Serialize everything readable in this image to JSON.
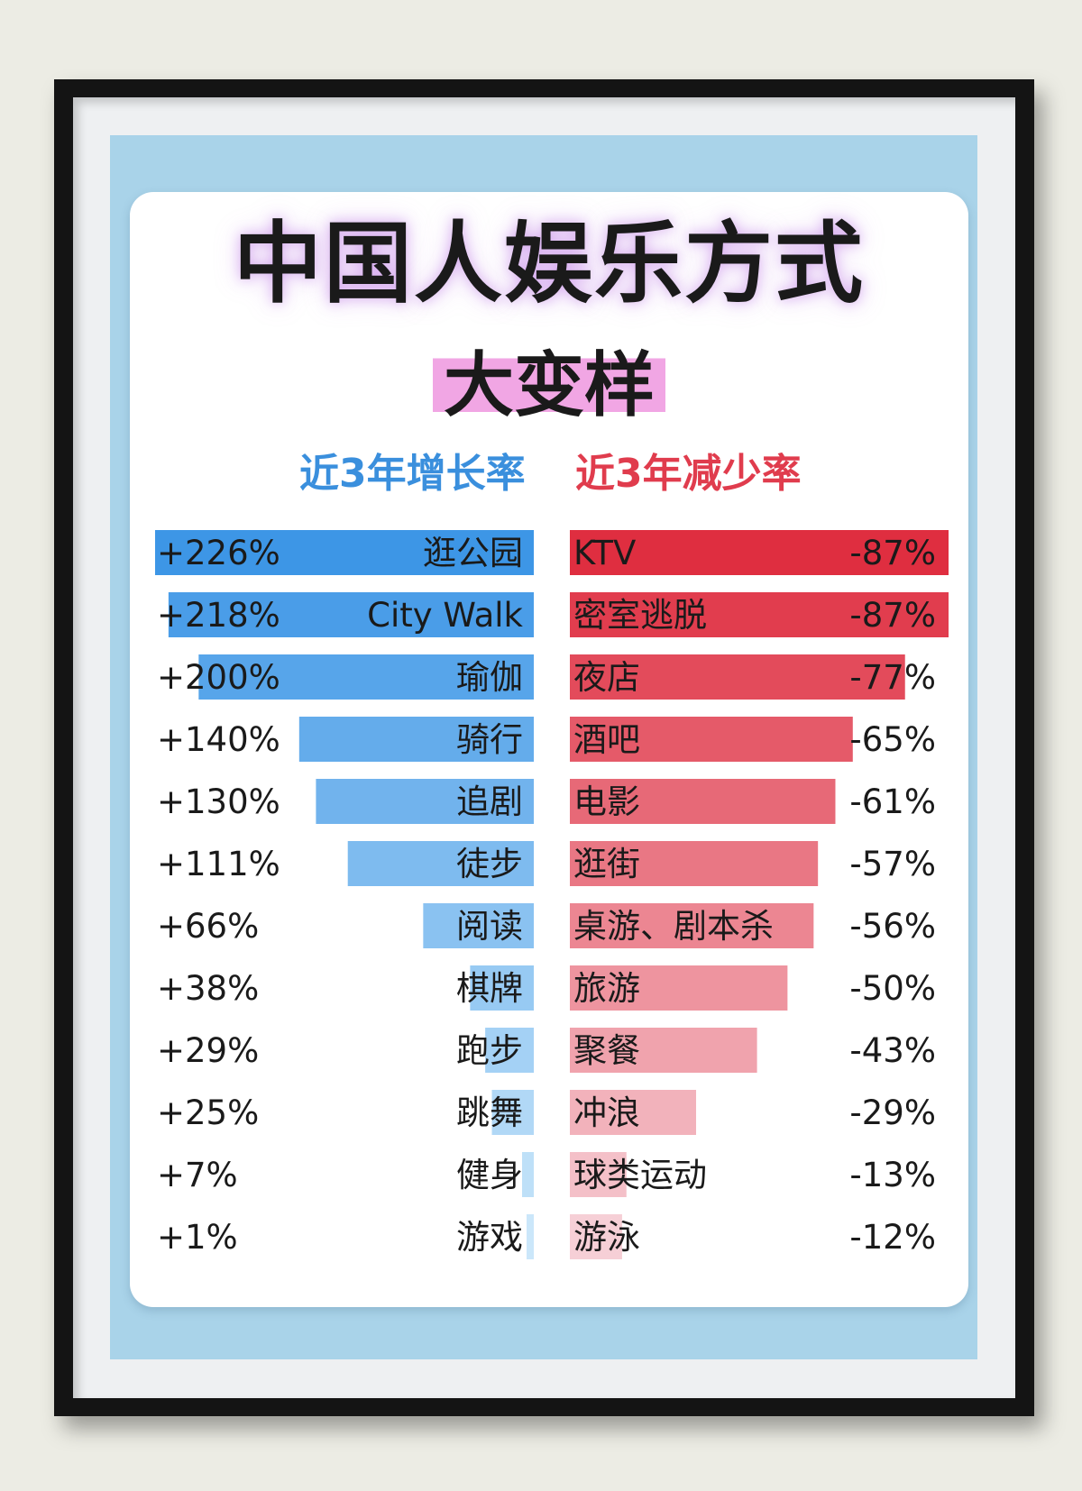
{
  "page": {
    "title": "中国人娱乐方式",
    "subtitle": "大变样"
  },
  "colors": {
    "growth_dark": "#3d96e6",
    "growth_light": "#cbe7fa",
    "decline_dark": "#df2e40",
    "decline_light": "#f6cfd6",
    "subtitle_highlight": "#f1a6e4"
  },
  "chart_data": [
    {
      "type": "bar",
      "orientation": "horizontal",
      "title": "近3年增长率",
      "categories": [
        "逛公园",
        "City Walk",
        "瑜伽",
        "骑行",
        "追剧",
        "徒步",
        "阅读",
        "棋牌",
        "跑步",
        "跳舞",
        "健身",
        "游戏"
      ],
      "values": [
        226,
        218,
        200,
        140,
        130,
        111,
        66,
        38,
        29,
        25,
        7,
        1
      ],
      "value_labels": [
        "+226%",
        "+218%",
        "+200%",
        "+140%",
        "+130%",
        "+111%",
        "+66%",
        "+38%",
        "+29%",
        "+25%",
        "+7%",
        "+1%"
      ],
      "unit": "%",
      "bar_direction": "right-to-left"
    },
    {
      "type": "bar",
      "orientation": "horizontal",
      "title": "近3年减少率",
      "categories": [
        "KTV",
        "密室逃脱",
        "夜店",
        "酒吧",
        "电影",
        "逛街",
        "桌游、剧本杀",
        "旅游",
        "聚餐",
        "冲浪",
        "球类运动",
        "游泳"
      ],
      "values": [
        -87,
        -87,
        -77,
        -65,
        -61,
        -57,
        -56,
        -50,
        -43,
        -29,
        -13,
        -12
      ],
      "value_labels": [
        "-87%",
        "-87%",
        "-77%",
        "-65%",
        "-61%",
        "-57%",
        "-56%",
        "-50%",
        "-43%",
        "-29%",
        "-13%",
        "-12%"
      ],
      "unit": "%",
      "bar_direction": "left-to-right"
    }
  ]
}
